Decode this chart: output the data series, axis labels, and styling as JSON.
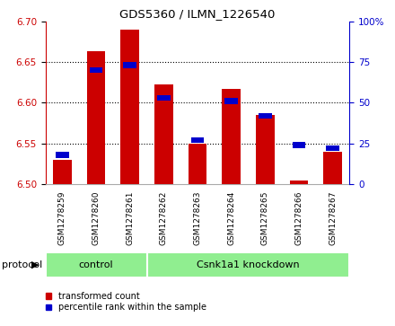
{
  "title": "GDS5360 / ILMN_1226540",
  "samples": [
    "GSM1278259",
    "GSM1278260",
    "GSM1278261",
    "GSM1278262",
    "GSM1278263",
    "GSM1278264",
    "GSM1278265",
    "GSM1278266",
    "GSM1278267"
  ],
  "red_values": [
    6.53,
    6.663,
    6.69,
    6.622,
    6.55,
    6.617,
    6.585,
    6.505,
    6.54
  ],
  "blue_values_pct": [
    18,
    70,
    73,
    53,
    27,
    51,
    42,
    24,
    22
  ],
  "ylim_left": [
    6.5,
    6.7
  ],
  "ylim_right": [
    0,
    100
  ],
  "yticks_left": [
    6.5,
    6.55,
    6.6,
    6.65,
    6.7
  ],
  "yticks_right": [
    0,
    25,
    50,
    75,
    100
  ],
  "ytick_labels_right": [
    "0",
    "25",
    "50",
    "75",
    "100%"
  ],
  "left_axis_color": "#cc0000",
  "right_axis_color": "#0000cc",
  "red_bar_color": "#cc0000",
  "blue_marker_color": "#0000cc",
  "control_samples": 3,
  "control_label": "control",
  "knockdown_label": "Csnk1a1 knockdown",
  "protocol_label": "protocol",
  "group_bg_color": "#90ee90",
  "sample_bg_color": "#d3d3d3",
  "legend_red_label": "transformed count",
  "legend_blue_label": "percentile rank within the sample",
  "bar_width": 0.55,
  "grid_color": "#000000",
  "background_color": "#ffffff",
  "plot_bg_color": "#ffffff",
  "blue_marker_size_pct": 3.5
}
